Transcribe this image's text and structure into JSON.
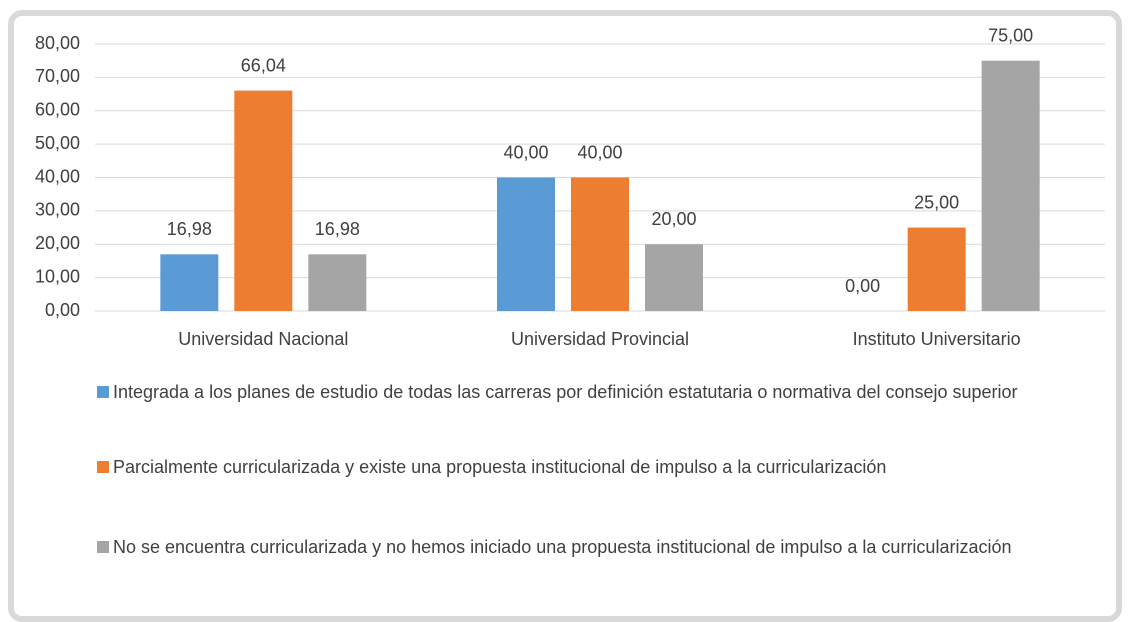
{
  "chart_data": {
    "type": "bar",
    "categories": [
      "Universidad Nacional",
      "Universidad Provincial",
      "Instituto Universitario"
    ],
    "series": [
      {
        "name": "Integrada a los planes de estudio de todas las carreras por definición estatutaria o normativa del consejo superior",
        "color": "#5b9bd5",
        "values": [
          16.98,
          40,
          0
        ],
        "value_labels": [
          "16,98",
          "40,00",
          "0,00"
        ]
      },
      {
        "name": "Parcialmente curricularizada y existe una propuesta institucional de impulso a la curricularización",
        "color": "#ed7d31",
        "values": [
          66.04,
          40,
          25
        ],
        "value_labels": [
          "66,04",
          "40,00",
          "25,00"
        ]
      },
      {
        "name": "No se encuentra curricularizada y no hemos iniciado una propuesta institucional de impulso a la curricularización",
        "color": "#a5a5a5",
        "values": [
          16.98,
          20,
          75
        ],
        "value_labels": [
          "16,98",
          "20,00",
          "75,00"
        ]
      }
    ],
    "ylim": [
      0,
      80
    ],
    "yticks": [
      {
        "value": 0,
        "label": "0,00"
      },
      {
        "value": 10,
        "label": "10,00"
      },
      {
        "value": 20,
        "label": "20,00"
      },
      {
        "value": 30,
        "label": "30,00"
      },
      {
        "value": 40,
        "label": "40,00"
      },
      {
        "value": 50,
        "label": "50,00"
      },
      {
        "value": 60,
        "label": "60,00"
      },
      {
        "value": 70,
        "label": "70,00"
      },
      {
        "value": 80,
        "label": "80,00"
      }
    ],
    "grid": true,
    "legend": "bottom"
  }
}
